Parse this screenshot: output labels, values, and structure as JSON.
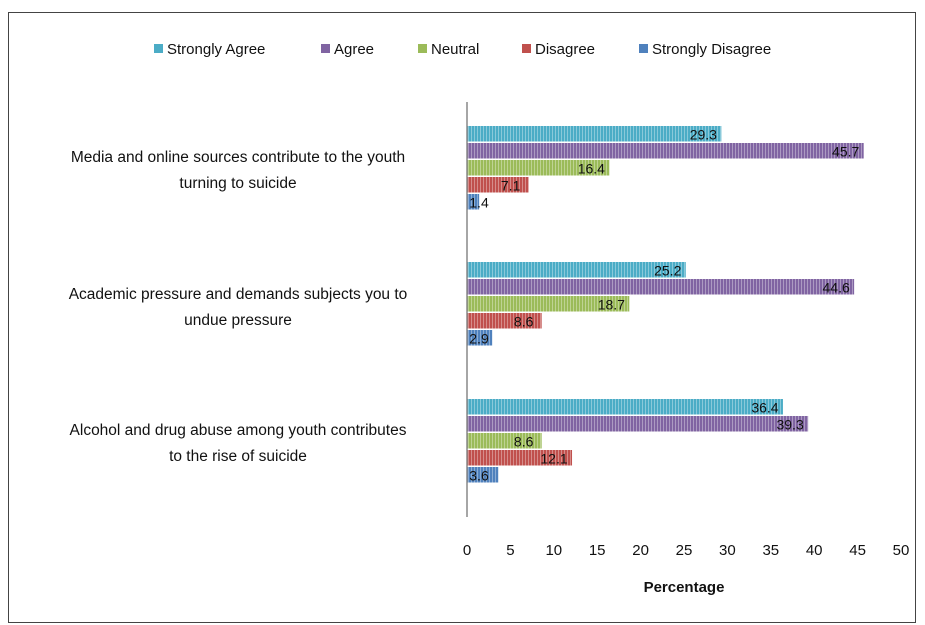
{
  "chart_data": {
    "type": "bar",
    "orientation": "horizontal",
    "categories": [
      "Media and online sources contribute to the youth turning to suicide",
      "Academic pressure and demands subjects you to undue pressure",
      "Alcohol and drug abuse among youth contributes to the rise of suicide"
    ],
    "category_lines": [
      [
        "Media and online sources contribute to the youth",
        "turning to suicide"
      ],
      [
        "Academic pressure and demands subjects you to",
        "undue pressure"
      ],
      [
        "Alcohol and drug abuse among youth contributes",
        "to the rise of suicide"
      ]
    ],
    "series": [
      {
        "name": "Strongly Agree",
        "color": "#4bacc6",
        "values": [
          29.3,
          25.2,
          36.4
        ]
      },
      {
        "name": "Agree",
        "color": "#8064a2",
        "values": [
          45.7,
          44.6,
          39.3
        ]
      },
      {
        "name": "Neutral",
        "color": "#9bbb59",
        "values": [
          16.4,
          18.7,
          8.6
        ]
      },
      {
        "name": "Disagree",
        "color": "#c0504d",
        "values": [
          7.1,
          8.6,
          12.1
        ]
      },
      {
        "name": "Strongly Disagree",
        "color": "#4f81bd",
        "values": [
          1.4,
          2.9,
          3.6
        ]
      }
    ],
    "xlabel": "Percentage",
    "xlim": [
      0,
      50
    ],
    "xticks": [
      "0",
      "5",
      "10",
      "15",
      "20",
      "25",
      "30",
      "35",
      "40",
      "45",
      "50"
    ],
    "legend_position": "top",
    "grid": false
  }
}
